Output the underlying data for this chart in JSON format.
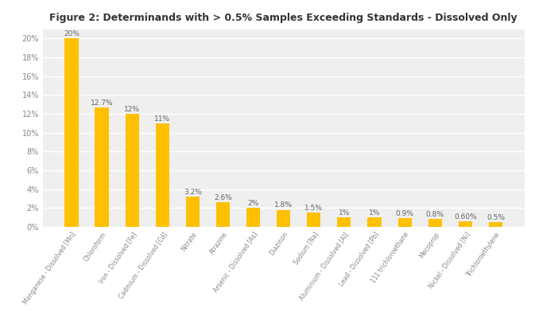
{
  "title": "Figure 2: Determinands with > 0.5% Samples Exceeding Standards - Dissolved Only",
  "categories": [
    "Manganese - Dissolved [Mn]",
    "Chloroform",
    "Iron - Dissolved [Fe]",
    "Cadmium - Dissolved [Cd]",
    "Nitrate",
    "Atrazine",
    "Arsenic - Dissolved [As]",
    "Diazinon",
    "Sodium [Na]",
    "Aluminium - Dissolved [Al]",
    "Lead - Dissolved [Pb]",
    "111 trichloroethane",
    "Mecoprop",
    "Nickel - Dissolved [Ni]",
    "Trichloroethylene"
  ],
  "values": [
    20,
    12.7,
    12,
    11,
    3.2,
    2.6,
    2.0,
    1.8,
    1.5,
    1.0,
    1.0,
    0.9,
    0.8,
    0.6,
    0.5
  ],
  "labels": [
    "20%",
    "12.7%",
    "12%",
    "11%",
    "3.2%",
    "2.6%",
    "2%",
    "1.8%",
    "1.5%",
    "1%",
    "1%",
    "0.9%",
    "0.8%",
    "0.60%",
    "0.5%"
  ],
  "bar_color": "#FFC000",
  "figure_background_color": "#FFFFFF",
  "plot_background_color": "#EFEFEF",
  "grid_color": "#FFFFFF",
  "ylim": [
    0,
    21
  ],
  "yticks": [
    0,
    2,
    4,
    6,
    8,
    10,
    12,
    14,
    16,
    18,
    20
  ],
  "ytick_labels": [
    "0%",
    "2%",
    "4%",
    "6%",
    "8%",
    "10%",
    "12%",
    "14%",
    "16%",
    "18%",
    "20%"
  ],
  "title_fontsize": 9,
  "label_fontsize": 6.5,
  "tick_fontsize": 7,
  "xtick_fontsize": 5.5,
  "bar_width": 0.45,
  "label_color": "#666666",
  "tick_color": "#888888"
}
